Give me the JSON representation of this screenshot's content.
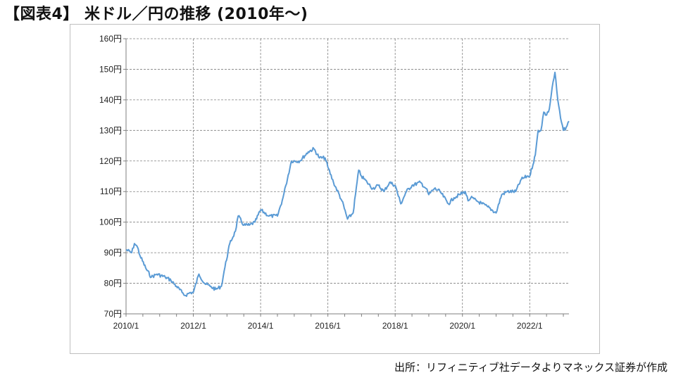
{
  "title": "【図表4】 米ドル／円の推移 (2010年〜)",
  "source": "出所：リフィニティブ社データよりマネックス証券が作成",
  "colors": {
    "line": "#5b9bd5",
    "grid": "#7f7f7f",
    "axis": "#7f7f7f"
  },
  "chart_data": {
    "type": "line",
    "title": "",
    "xlabel": "",
    "ylabel": "",
    "ylim": [
      70,
      160
    ],
    "xlim": [
      "2010-01",
      "2023-03"
    ],
    "grid": true,
    "y_ticks": [
      70,
      80,
      90,
      100,
      110,
      120,
      130,
      140,
      150,
      160
    ],
    "y_tick_labels": [
      "70円",
      "80円",
      "90円",
      "100円",
      "110円",
      "120円",
      "130円",
      "140円",
      "150円",
      "160円"
    ],
    "x_ticks": [
      "2010-01",
      "2012-01",
      "2014-01",
      "2016-01",
      "2018-01",
      "2020-01",
      "2022-01"
    ],
    "x_tick_labels": [
      "2010/1",
      "2012/1",
      "2014/1",
      "2016/1",
      "2018/1",
      "2020/1",
      "2022/1"
    ],
    "series": [
      {
        "x": [
          "2010-01",
          "2010-03",
          "2010-04",
          "2010-05",
          "2010-06",
          "2010-08",
          "2010-10",
          "2010-12",
          "2011-03",
          "2011-05",
          "2011-07",
          "2011-09",
          "2011-10",
          "2011-12",
          "2012-01",
          "2012-03",
          "2012-05",
          "2012-07",
          "2012-09",
          "2012-11",
          "2012-12",
          "2013-02",
          "2013-04",
          "2013-05",
          "2013-07",
          "2013-09",
          "2013-11",
          "2014-01",
          "2014-04",
          "2014-07",
          "2014-09",
          "2014-10",
          "2014-12",
          "2015-03",
          "2015-06",
          "2015-08",
          "2015-10",
          "2015-12",
          "2016-01",
          "2016-03",
          "2016-06",
          "2016-08",
          "2016-10",
          "2016-12",
          "2017-01",
          "2017-03",
          "2017-05",
          "2017-07",
          "2017-09",
          "2017-11",
          "2018-01",
          "2018-03",
          "2018-05",
          "2018-07",
          "2018-10",
          "2018-12",
          "2019-01",
          "2019-03",
          "2019-05",
          "2019-08",
          "2019-10",
          "2019-12",
          "2020-02",
          "2020-03",
          "2020-04",
          "2020-06",
          "2020-08",
          "2020-10",
          "2021-01",
          "2021-03",
          "2021-05",
          "2021-08",
          "2021-10",
          "2021-12",
          "2022-01",
          "2022-03",
          "2022-04",
          "2022-05",
          "2022-06",
          "2022-07",
          "2022-08",
          "2022-09",
          "2022-10",
          "2022-11",
          "2022-12",
          "2023-01",
          "2023-02",
          "2023-03"
        ],
        "values": [
          91,
          90,
          93,
          92,
          89,
          85,
          82,
          83,
          82,
          81,
          79,
          77,
          76,
          77,
          77,
          83,
          80,
          79,
          78,
          79,
          84,
          93,
          97,
          102,
          99,
          99,
          100,
          104,
          102,
          102,
          108,
          112,
          120,
          120,
          123,
          124,
          121,
          121,
          118,
          113,
          107,
          101,
          103,
          117,
          115,
          113,
          111,
          112,
          110,
          113,
          112,
          106,
          110,
          112,
          113,
          111,
          109,
          111,
          110,
          106,
          108,
          109,
          110,
          107,
          108,
          107,
          106,
          105,
          103,
          109,
          110,
          110,
          114,
          115,
          115,
          122,
          130,
          130,
          136,
          135,
          137,
          144,
          149,
          140,
          134,
          130,
          131,
          133
        ]
      }
    ]
  }
}
